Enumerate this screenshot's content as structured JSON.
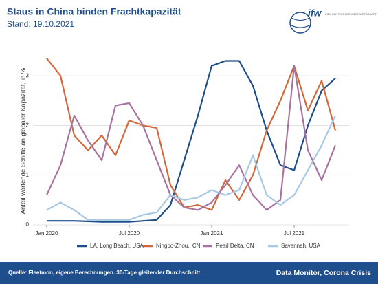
{
  "chart_data": {
    "type": "line",
    "title": "Staus in China binden Frachtkapazität",
    "subtitle": "Stand: 19.10.2021",
    "ylabel": "Anteil wartende Schiffe an globaler Kapazität, in %",
    "x": [
      "2020-01",
      "2020-02",
      "2020-03",
      "2020-04",
      "2020-05",
      "2020-06",
      "2020-07",
      "2020-08",
      "2020-09",
      "2020-10",
      "2020-11",
      "2020-12",
      "2021-01",
      "2021-02",
      "2021-03",
      "2021-04",
      "2021-05",
      "2021-06",
      "2021-07",
      "2021-08",
      "2021-09",
      "2021-10"
    ],
    "series": [
      {
        "name": "LA, Long Beach, USA",
        "color": "#1f4e8c",
        "values": [
          0.08,
          0.08,
          0.08,
          0.07,
          0.06,
          0.06,
          0.06,
          0.08,
          0.1,
          0.4,
          1.3,
          2.2,
          3.2,
          3.3,
          3.3,
          2.8,
          1.9,
          1.2,
          1.1,
          2.0,
          2.7,
          2.95
        ]
      },
      {
        "name": "Ningbo-Zhou., CN",
        "color": "#d4683a",
        "values": [
          3.35,
          3.0,
          1.8,
          1.5,
          1.8,
          1.4,
          2.1,
          2.0,
          1.95,
          0.8,
          0.35,
          0.4,
          0.3,
          0.9,
          0.5,
          1.0,
          1.9,
          2.5,
          3.2,
          2.3,
          2.9,
          1.9
        ]
      },
      {
        "name": "Pearl Delta, CN",
        "color": "#a872a0",
        "values": [
          0.6,
          1.2,
          2.2,
          1.7,
          1.3,
          2.4,
          2.45,
          2.0,
          1.3,
          0.6,
          0.35,
          0.3,
          0.45,
          0.8,
          1.2,
          0.6,
          0.3,
          0.5,
          3.2,
          1.5,
          0.9,
          1.6
        ]
      },
      {
        "name": "Savannah, USA",
        "color": "#a6c8e4",
        "values": [
          0.3,
          0.45,
          0.3,
          0.1,
          0.1,
          0.1,
          0.1,
          0.2,
          0.25,
          0.6,
          0.5,
          0.55,
          0.7,
          0.6,
          0.7,
          1.4,
          0.6,
          0.4,
          0.6,
          1.1,
          1.6,
          2.2
        ]
      }
    ],
    "xlim": [
      "2019-12",
      "2021-11"
    ],
    "xticks": [
      {
        "value": "2020-01",
        "label": "Jan 2020"
      },
      {
        "value": "2020-07",
        "label": "Jul 2020"
      },
      {
        "value": "2021-01",
        "label": "Jan 2021"
      },
      {
        "value": "2021-07",
        "label": "Jul 2021"
      }
    ],
    "ylim": [
      0,
      3.5
    ],
    "yticks": [
      0,
      1,
      2,
      3
    ],
    "grid": true,
    "legend": "bottom"
  },
  "logo": {
    "mark": "ifw",
    "text": "KIEL INSTITUT FÜR WELTWIRTSCHAFT"
  },
  "footer": {
    "source": "Quelle: Fleetmon, eigene Berechnungen. 30-Tage gleitender Durchschnitt",
    "brand": "Data Monitor, Corona Crisis"
  }
}
